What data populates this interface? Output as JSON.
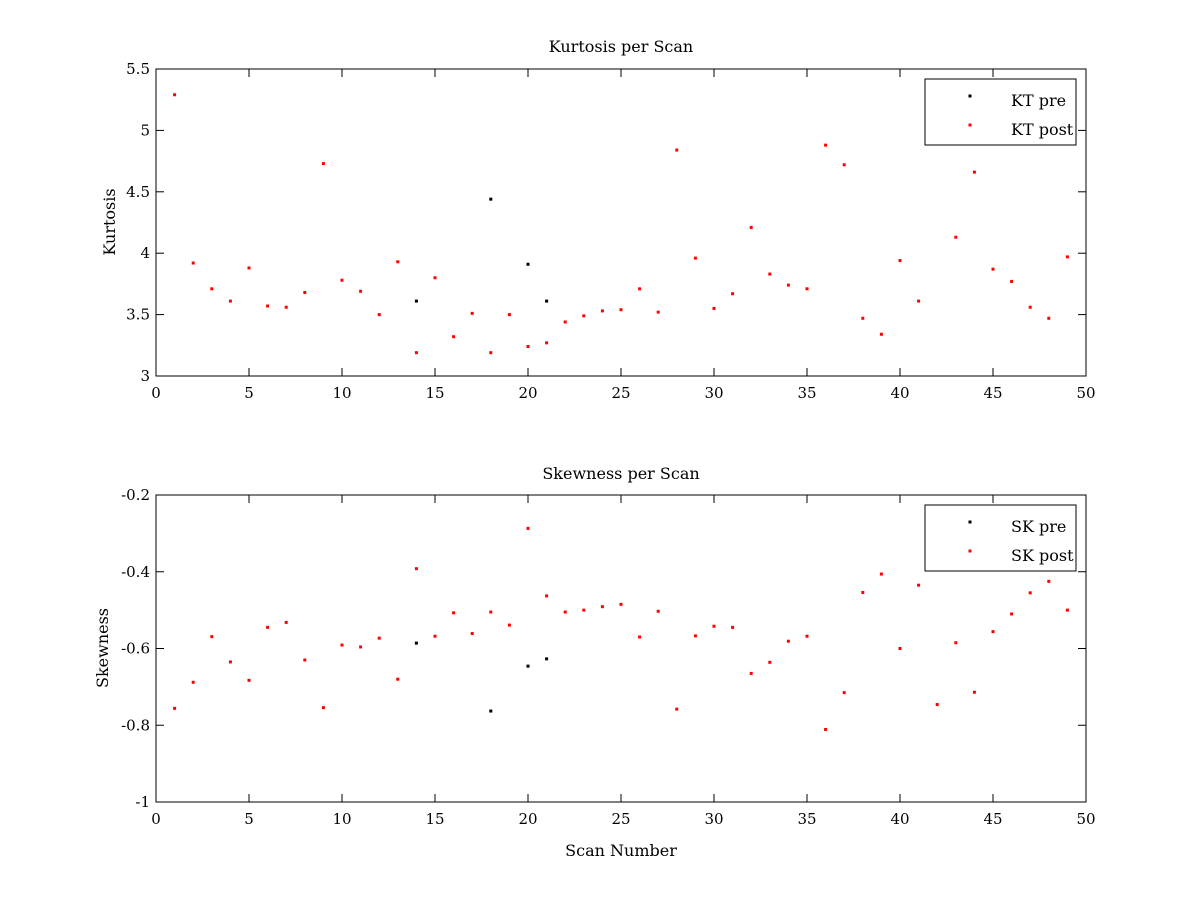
{
  "figure": {
    "background": "#ffffff"
  },
  "chart_data": [
    {
      "id": "kurtosis",
      "type": "scatter",
      "title": "Kurtosis per Scan",
      "xlabel": "",
      "ylabel": "Kurtosis",
      "xlim": [
        0,
        50
      ],
      "ylim": [
        3,
        5.5
      ],
      "xticks": [
        0,
        5,
        10,
        15,
        20,
        25,
        30,
        35,
        40,
        45,
        50
      ],
      "yticks": [
        3,
        3.5,
        4,
        4.5,
        5,
        5.5
      ],
      "xtick_labels": [
        "0",
        "5",
        "10",
        "15",
        "20",
        "25",
        "30",
        "35",
        "40",
        "45",
        "50"
      ],
      "ytick_labels": [
        "3",
        "3.5",
        "4",
        "4.5",
        "5",
        "5.5"
      ],
      "grid": false,
      "legend_position": "top-right",
      "series": [
        {
          "name": "KT pre",
          "color": "#000000",
          "points": [
            [
              14,
              3.61
            ],
            [
              18,
              4.44
            ],
            [
              20,
              3.91
            ],
            [
              21,
              3.61
            ]
          ]
        },
        {
          "name": "KT post",
          "color": "#ff0000",
          "points": [
            [
              1,
              5.29
            ],
            [
              2,
              3.92
            ],
            [
              3,
              3.71
            ],
            [
              4,
              3.61
            ],
            [
              5,
              3.88
            ],
            [
              6,
              3.57
            ],
            [
              7,
              3.56
            ],
            [
              8,
              3.68
            ],
            [
              9,
              4.73
            ],
            [
              10,
              3.78
            ],
            [
              11,
              3.69
            ],
            [
              12,
              3.5
            ],
            [
              13,
              3.93
            ],
            [
              14,
              3.19
            ],
            [
              15,
              3.8
            ],
            [
              16,
              3.32
            ],
            [
              17,
              3.51
            ],
            [
              18,
              3.19
            ],
            [
              19,
              3.5
            ],
            [
              20,
              3.24
            ],
            [
              21,
              3.27
            ],
            [
              22,
              3.44
            ],
            [
              23,
              3.49
            ],
            [
              24,
              3.53
            ],
            [
              25,
              3.54
            ],
            [
              26,
              3.71
            ],
            [
              27,
              3.52
            ],
            [
              28,
              4.84
            ],
            [
              29,
              3.96
            ],
            [
              30,
              3.55
            ],
            [
              31,
              3.67
            ],
            [
              32,
              4.21
            ],
            [
              33,
              3.83
            ],
            [
              34,
              3.74
            ],
            [
              35,
              3.71
            ],
            [
              36,
              4.88
            ],
            [
              37,
              4.72
            ],
            [
              38,
              3.47
            ],
            [
              39,
              3.34
            ],
            [
              40,
              3.94
            ],
            [
              41,
              3.61
            ],
            [
              43,
              4.13
            ],
            [
              44,
              4.66
            ],
            [
              45,
              3.87
            ],
            [
              46,
              3.77
            ],
            [
              47,
              3.56
            ],
            [
              48,
              3.47
            ],
            [
              49,
              3.97
            ]
          ]
        }
      ]
    },
    {
      "id": "skewness",
      "type": "scatter",
      "title": "Skewness per Scan",
      "xlabel": "Scan Number",
      "ylabel": "Skewness",
      "xlim": [
        0,
        50
      ],
      "ylim": [
        -1,
        -0.2
      ],
      "xticks": [
        0,
        5,
        10,
        15,
        20,
        25,
        30,
        35,
        40,
        45,
        50
      ],
      "yticks": [
        -1,
        -0.8,
        -0.6,
        -0.4,
        -0.2
      ],
      "xtick_labels": [
        "0",
        "5",
        "10",
        "15",
        "20",
        "25",
        "30",
        "35",
        "40",
        "45",
        "50"
      ],
      "ytick_labels": [
        "-1",
        "-0.8",
        "-0.6",
        "-0.4",
        "-0.2"
      ],
      "grid": false,
      "legend_position": "top-right",
      "series": [
        {
          "name": "SK pre",
          "color": "#000000",
          "points": [
            [
              14,
              -0.586
            ],
            [
              18,
              -0.763
            ],
            [
              20,
              -0.646
            ],
            [
              21,
              -0.627
            ]
          ]
        },
        {
          "name": "SK post",
          "color": "#ff0000",
          "points": [
            [
              1,
              -0.756
            ],
            [
              2,
              -0.688
            ],
            [
              3,
              -0.569
            ],
            [
              4,
              -0.635
            ],
            [
              5,
              -0.683
            ],
            [
              6,
              -0.545
            ],
            [
              7,
              -0.532
            ],
            [
              8,
              -0.63
            ],
            [
              9,
              -0.754
            ],
            [
              10,
              -0.591
            ],
            [
              11,
              -0.596
            ],
            [
              12,
              -0.573
            ],
            [
              13,
              -0.68
            ],
            [
              14,
              -0.392
            ],
            [
              15,
              -0.568
            ],
            [
              16,
              -0.507
            ],
            [
              17,
              -0.561
            ],
            [
              18,
              -0.505
            ],
            [
              19,
              -0.539
            ],
            [
              20,
              -0.287
            ],
            [
              21,
              -0.463
            ],
            [
              22,
              -0.505
            ],
            [
              23,
              -0.5
            ],
            [
              24,
              -0.491
            ],
            [
              25,
              -0.485
            ],
            [
              26,
              -0.57
            ],
            [
              27,
              -0.503
            ],
            [
              28,
              -0.758
            ],
            [
              29,
              -0.567
            ],
            [
              30,
              -0.542
            ],
            [
              31,
              -0.545
            ],
            [
              32,
              -0.665
            ],
            [
              33,
              -0.636
            ],
            [
              34,
              -0.581
            ],
            [
              35,
              -0.568
            ],
            [
              36,
              -0.811
            ],
            [
              37,
              -0.715
            ],
            [
              38,
              -0.454
            ],
            [
              39,
              -0.406
            ],
            [
              40,
              -0.6
            ],
            [
              41,
              -0.435
            ],
            [
              42,
              -0.746
            ],
            [
              43,
              -0.585
            ],
            [
              44,
              -0.714
            ],
            [
              45,
              -0.556
            ],
            [
              46,
              -0.51
            ],
            [
              47,
              -0.455
            ],
            [
              48,
              -0.425
            ],
            [
              49,
              -0.5
            ]
          ]
        }
      ]
    }
  ]
}
